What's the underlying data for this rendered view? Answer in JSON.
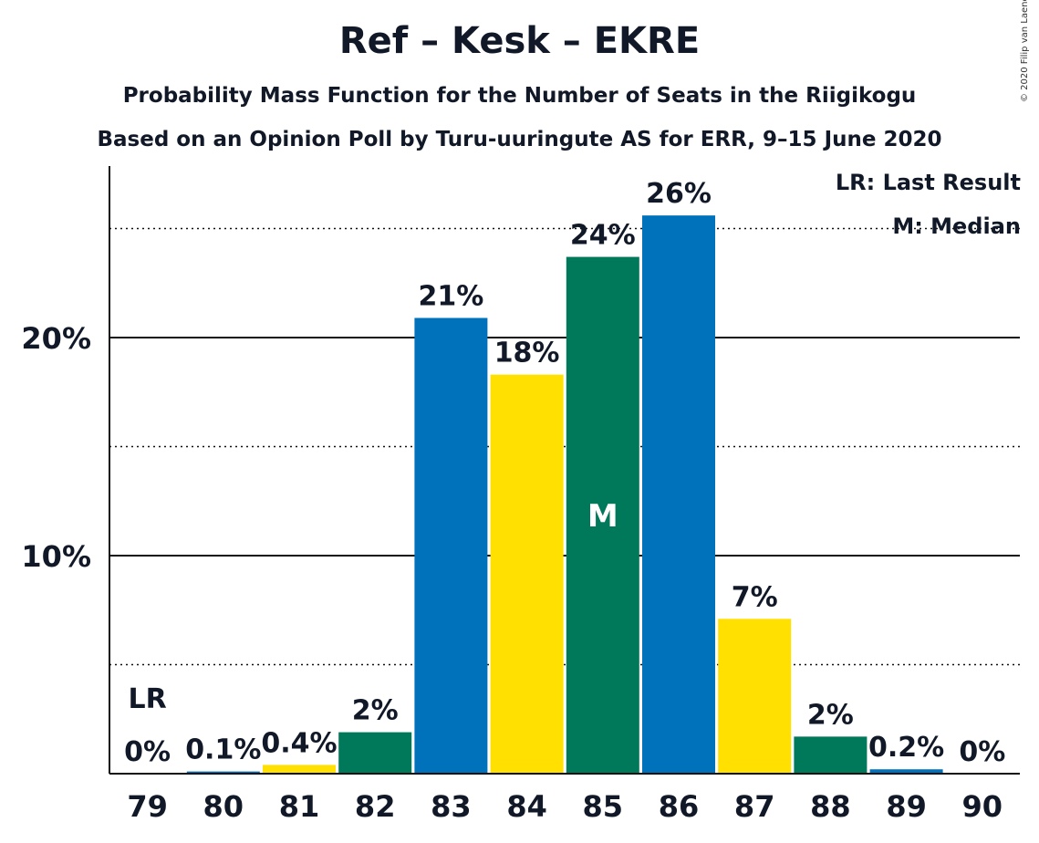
{
  "header": {
    "title": "Ref – Kesk – EKRE",
    "subtitle": "Probability Mass Function for the Number of Seats in the Riigikogu",
    "source_line": "Based on an Opinion Poll by Turu-uuringute AS for ERR, 9–15 June 2020",
    "copyright": "© 2020 Filip van Laenen"
  },
  "legend": {
    "last_result": "LR: Last Result",
    "median": "M: Median"
  },
  "chart_data": {
    "type": "bar",
    "categories": [
      "79",
      "80",
      "81",
      "82",
      "83",
      "84",
      "85",
      "86",
      "87",
      "88",
      "89",
      "90"
    ],
    "values": [
      0,
      0.1,
      0.4,
      1.9,
      20.9,
      18.3,
      23.7,
      25.6,
      7.1,
      1.7,
      0.2,
      0
    ],
    "labels": [
      "0%",
      "0.1%",
      "0.4%",
      "2%",
      "21%",
      "18%",
      "24%",
      "26%",
      "7%",
      "2%",
      "0.2%",
      "0%"
    ],
    "colors": [
      "#0072BB",
      "#0072BB",
      "#FFE000",
      "#00785A",
      "#0072BB",
      "#FFE000",
      "#00785A",
      "#0072BB",
      "#FFE000",
      "#00785A",
      "#0072BB",
      "#0072BB"
    ],
    "ylim": [
      0,
      28
    ],
    "yticks": [
      {
        "value": 10,
        "label": "10%"
      },
      {
        "value": 20,
        "label": "20%"
      }
    ],
    "minor_gridlines": [
      5,
      15,
      25
    ],
    "last_result_category": "79",
    "last_result_marker": "LR",
    "median_category": "85",
    "median_marker": "M",
    "title": "Ref – Kesk – EKRE",
    "xlabel": "",
    "ylabel": ""
  }
}
